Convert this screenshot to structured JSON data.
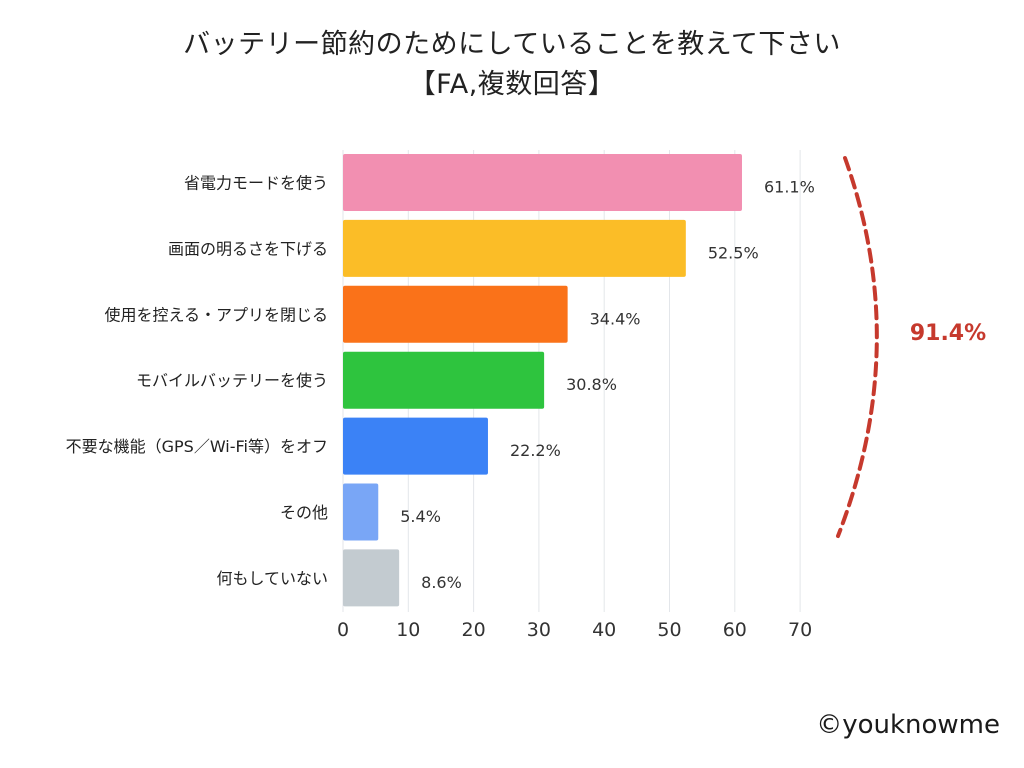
{
  "title_line_1": "バッテリー節約のためにしていることを教えて下さい",
  "title_line_2": "【FA,複数回答】",
  "credit": "©youknowme",
  "chart_data": {
    "type": "bar",
    "orientation": "horizontal",
    "title": "バッテリー節約のためにしていることを教えて下さい【FA,複数回答】",
    "categories": [
      "省電力モードを使う",
      "画面の明るさを下げる",
      "使用を控える・アプリを閉じる",
      "モバイルバッテリーを使う",
      "不要な機能（GPS／Wi-Fi等）をオフ",
      "その他",
      "何もしていない"
    ],
    "values": [
      61.1,
      52.5,
      34.4,
      30.8,
      22.2,
      5.4,
      8.6
    ],
    "value_labels": [
      "61.1%",
      "52.5%",
      "34.4%",
      "30.8%",
      "22.2%",
      "5.4%",
      "8.6%"
    ],
    "colors": [
      "#f28fb1",
      "#fbbd27",
      "#fa7219",
      "#2ec43e",
      "#3b82f6",
      "#79a6f6",
      "#c3cbd0"
    ],
    "x_ticks": [
      0,
      10,
      20,
      30,
      40,
      50,
      60,
      70
    ],
    "xlim": [
      0,
      70
    ],
    "grid": "vertical",
    "bracket_label": "91.4%",
    "bracket_color": "#c6392d",
    "xlabel": "",
    "ylabel": ""
  }
}
